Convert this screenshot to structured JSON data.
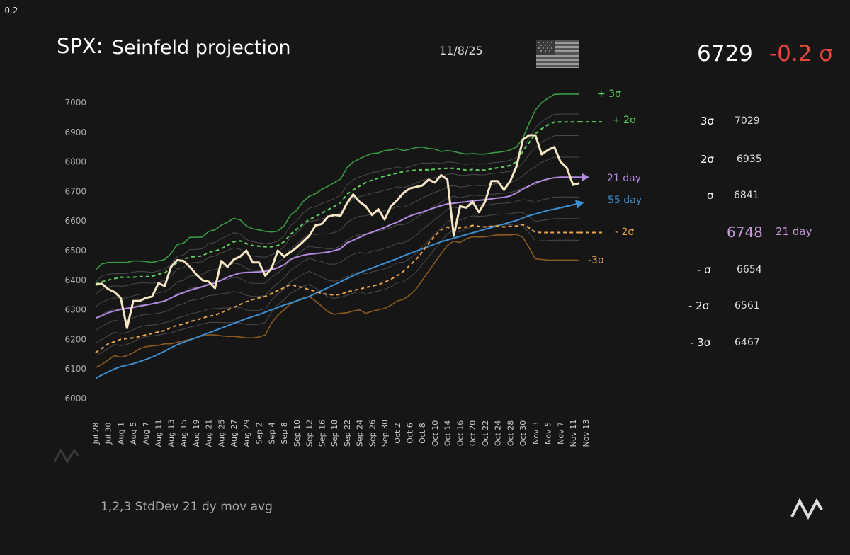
{
  "header": {
    "corner_value": "-0.2",
    "ticker": "SPX:",
    "subtitle": "Seinfeld projection",
    "date": "11/8/25",
    "price": "6729",
    "sigma_now": "-0.2 σ"
  },
  "levels": [
    {
      "label": "3σ",
      "value": "7029"
    },
    {
      "label": "2σ",
      "value": "6935"
    },
    {
      "label": "σ",
      "value": "6841"
    },
    {
      "label": "- σ",
      "value": "6654"
    },
    {
      "label": "- 2σ",
      "value": "6561"
    },
    {
      "label": "- 3σ",
      "value": "6467"
    }
  ],
  "current_ma": {
    "value": "6748",
    "label": "21 day"
  },
  "footnote": "1,2,3  StdDev 21 dy mov avg",
  "colors": {
    "price": "#f5e6c4",
    "plus3": "#3a9a45",
    "plus2": "#5ccf5f",
    "minus2": "#e9a54e",
    "minus3": "#8a5a20",
    "ma21": "#b38be0",
    "ma55": "#3d8fd1",
    "inner": "#8a8a8a",
    "sigma_red": "#e5473c"
  },
  "chart_data": {
    "type": "line",
    "title": "SPX: Seinfeld projection",
    "ylim": [
      6000,
      7000
    ],
    "yticks": [
      "7000",
      "6900",
      "6800",
      "6700",
      "6600",
      "6500",
      "6400",
      "6300",
      "6200",
      "6100",
      "6000"
    ],
    "xtick_labels": [
      "Jul 28",
      "Jul 30",
      "Aug 1",
      "Aug 5",
      "Aug 7",
      "Aug 11",
      "Aug 13",
      "Aug 15",
      "Aug 19",
      "Aug 21",
      "Aug 25",
      "Aug 27",
      "Aug 29",
      "Sep 2",
      "Sep 4",
      "Sep 8",
      "Sep 10",
      "Sep 12",
      "Sep 16",
      "Sep 18",
      "Sep 22",
      "Sep 24",
      "Sep 26",
      "Sep 30",
      "Oct 2",
      "Oct 6",
      "Oct 8",
      "Oct 10",
      "Oct 14",
      "Oct 16",
      "Oct 20",
      "Oct 22",
      "Oct 24",
      "Oct 28",
      "Oct 30",
      "Nov 3",
      "Nov 5",
      "Nov 7",
      "Nov 11",
      "Nov 13"
    ],
    "annotations": {
      "plus3": "+ 3σ",
      "plus2": "+ 2σ",
      "ma21": "21 day",
      "ma55": "55 day",
      "minus2": "- 2σ",
      "minus3": "-3σ"
    },
    "series": [
      {
        "name": "price",
        "values": [
          6385,
          6388,
          6370,
          6360,
          6340,
          6238,
          6330,
          6330,
          6340,
          6345,
          6390,
          6380,
          6445,
          6468,
          6465,
          6445,
          6420,
          6400,
          6395,
          6373,
          6465,
          6445,
          6470,
          6480,
          6500,
          6460,
          6460,
          6415,
          6440,
          6500,
          6480,
          6495,
          6510,
          6530,
          6550,
          6585,
          6590,
          6615,
          6620,
          6618,
          6660,
          6690,
          6665,
          6650,
          6620,
          6640,
          6605,
          6650,
          6670,
          6695,
          6710,
          6715,
          6720,
          6740,
          6730,
          6755,
          6740,
          6550,
          6650,
          6645,
          6665,
          6630,
          6665,
          6735,
          6735,
          6705,
          6735,
          6785,
          6875,
          6890,
          6890,
          6825,
          6840,
          6850,
          6800,
          6780,
          6722,
          6728
        ]
      },
      {
        "name": "+3σ",
        "values": [
          6435,
          6455,
          6460,
          6460,
          6460,
          6460,
          6465,
          6465,
          6463,
          6460,
          6465,
          6470,
          6490,
          6520,
          6525,
          6545,
          6545,
          6546,
          6565,
          6570,
          6586,
          6596,
          6609,
          6604,
          6583,
          6574,
          6570,
          6565,
          6563,
          6566,
          6584,
          6620,
          6636,
          6665,
          6684,
          6692,
          6707,
          6718,
          6730,
          6742,
          6780,
          6800,
          6810,
          6820,
          6828,
          6830,
          6838,
          6840,
          6845,
          6838,
          6843,
          6848,
          6850,
          6845,
          6843,
          6835,
          6838,
          6835,
          6830,
          6826,
          6828,
          6826,
          6826,
          6830,
          6832,
          6835,
          6840,
          6850,
          6880,
          6930,
          6975,
          7000,
          7015,
          7028,
          7029,
          7029,
          7029,
          7029
        ]
      },
      {
        "name": "+2σ",
        "values": [
          6388,
          6395,
          6400,
          6405,
          6410,
          6410,
          6410,
          6412,
          6412,
          6413,
          6420,
          6425,
          6440,
          6460,
          6470,
          6478,
          6480,
          6482,
          6495,
          6498,
          6506,
          6518,
          6530,
          6533,
          6524,
          6517,
          6515,
          6513,
          6513,
          6517,
          6530,
          6555,
          6572,
          6590,
          6605,
          6615,
          6627,
          6638,
          6650,
          6662,
          6690,
          6705,
          6718,
          6730,
          6738,
          6745,
          6752,
          6757,
          6762,
          6767,
          6770,
          6772,
          6773,
          6773,
          6775,
          6777,
          6778,
          6778,
          6775,
          6772,
          6774,
          6772,
          6772,
          6776,
          6780,
          6783,
          6788,
          6800,
          6835,
          6865,
          6895,
          6912,
          6925,
          6934,
          6935,
          6935,
          6935,
          6935
        ]
      },
      {
        "name": "-2σ",
        "values": [
          6155,
          6170,
          6185,
          6192,
          6200,
          6203,
          6205,
          6210,
          6215,
          6220,
          6225,
          6230,
          6240,
          6248,
          6252,
          6260,
          6265,
          6272,
          6278,
          6282,
          6290,
          6300,
          6308,
          6318,
          6327,
          6335,
          6340,
          6345,
          6355,
          6365,
          6375,
          6385,
          6380,
          6375,
          6368,
          6362,
          6355,
          6352,
          6350,
          6352,
          6360,
          6365,
          6370,
          6375,
          6380,
          6385,
          6393,
          6403,
          6415,
          6430,
          6450,
          6470,
          6495,
          6525,
          6550,
          6570,
          6580,
          6570,
          6578,
          6580,
          6585,
          6582,
          6580,
          6582,
          6583,
          6580,
          6582,
          6583,
          6588,
          6577,
          6562,
          6561,
          6561,
          6561,
          6561,
          6561,
          6561,
          6561
        ]
      },
      {
        "name": "-3σ",
        "values": [
          6105,
          6115,
          6130,
          6145,
          6140,
          6145,
          6155,
          6168,
          6175,
          6178,
          6180,
          6185,
          6185,
          6190,
          6195,
          6200,
          6205,
          6212,
          6215,
          6215,
          6212,
          6210,
          6210,
          6208,
          6205,
          6205,
          6208,
          6215,
          6255,
          6282,
          6300,
          6320,
          6330,
          6340,
          6345,
          6330,
          6312,
          6293,
          6285,
          6288,
          6290,
          6296,
          6300,
          6288,
          6295,
          6300,
          6305,
          6315,
          6330,
          6335,
          6350,
          6370,
          6400,
          6430,
          6460,
          6490,
          6518,
          6532,
          6527,
          6540,
          6547,
          6546,
          6547,
          6550,
          6553,
          6553,
          6553,
          6555,
          6545,
          6510,
          6472,
          6470,
          6468,
          6468,
          6468,
          6468,
          6468,
          6467
        ]
      },
      {
        "name": "21 day",
        "values": [
          6272,
          6280,
          6290,
          6296,
          6302,
          6305,
          6308,
          6312,
          6316,
          6320,
          6325,
          6330,
          6340,
          6350,
          6358,
          6366,
          6372,
          6378,
          6385,
          6390,
          6400,
          6410,
          6418,
          6424,
          6426,
          6427,
          6428,
          6430,
          6435,
          6442,
          6452,
          6470,
          6478,
          6484,
          6488,
          6490,
          6492,
          6495,
          6500,
          6506,
          6526,
          6535,
          6545,
          6555,
          6562,
          6570,
          6578,
          6588,
          6596,
          6606,
          6617,
          6624,
          6630,
          6638,
          6645,
          6652,
          6658,
          6660,
          6663,
          6665,
          6668,
          6670,
          6672,
          6675,
          6678,
          6680,
          6685,
          6695,
          6708,
          6718,
          6730,
          6736,
          6742,
          6746,
          6748,
          6748,
          6748,
          6748
        ]
      },
      {
        "name": "55 day",
        "values": [
          6068,
          6080,
          6090,
          6100,
          6108,
          6113,
          6118,
          6125,
          6132,
          6140,
          6150,
          6160,
          6172,
          6182,
          6190,
          6198,
          6206,
          6214,
          6222,
          6230,
          6238,
          6246,
          6254,
          6262,
          6270,
          6277,
          6284,
          6292,
          6300,
          6308,
          6316,
          6323,
          6330,
          6337,
          6345,
          6355,
          6365,
          6375,
          6385,
          6395,
          6405,
          6415,
          6425,
          6433,
          6441,
          6449,
          6457,
          6465,
          6473,
          6482,
          6490,
          6498,
          6506,
          6514,
          6522,
          6530,
          6536,
          6542,
          6548,
          6554,
          6560,
          6566,
          6572,
          6578,
          6584,
          6590,
          6596,
          6602,
          6610,
          6618,
          6624,
          6630,
          6636,
          6640,
          6645,
          6650,
          6655,
          6660
        ]
      }
    ]
  }
}
